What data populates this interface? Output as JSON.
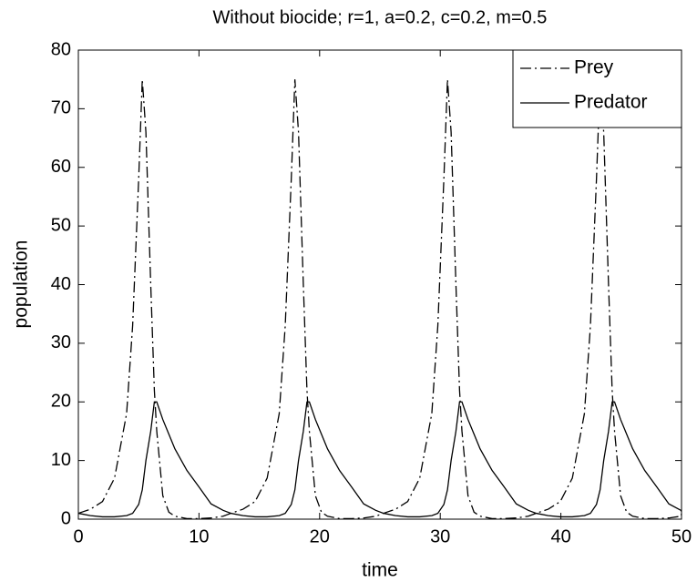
{
  "chart_data": {
    "type": "line",
    "title": "Without biocide; r=1, a=0.2, c=0.2, m=0.5",
    "xlabel": "time",
    "ylabel": "population",
    "x": [
      0,
      1,
      2,
      3,
      4,
      4.5,
      5,
      5.3,
      5.6,
      6,
      6.3,
      6.5,
      7,
      7.5,
      8,
      9,
      10,
      11,
      12,
      12.65,
      13.65,
      14.65,
      15.65,
      16.65,
      17.15,
      17.65,
      17.95,
      18.25,
      18.65,
      18.95,
      19.15,
      19.65,
      20.15,
      20.65,
      21.65,
      22.65,
      23.65,
      24.65,
      25.3,
      26.3,
      27.3,
      28.3,
      29.3,
      29.8,
      30.3,
      30.6,
      30.9,
      31.3,
      31.6,
      31.8,
      32.3,
      32.8,
      33.3,
      34.3,
      35.3,
      36.3,
      37.3,
      37.95,
      38.95,
      39.95,
      40.95,
      41.95,
      42.45,
      42.95,
      43.25,
      43.55,
      43.95,
      44.25,
      44.45,
      44.95,
      45.45,
      45.95,
      46.95,
      47.95,
      48.95,
      49.95,
      50
    ],
    "series": [
      {
        "name": "Prey",
        "color": "#000000",
        "dash": "dashdot",
        "values": [
          1,
          1.7,
          3,
          7,
          18,
          33,
          58,
          75,
          66,
          40,
          22,
          15,
          4,
          1.2,
          0.5,
          0.1,
          0.1,
          0.2,
          0.5,
          1,
          1.7,
          3,
          7,
          18,
          33,
          58,
          75,
          66,
          40,
          22,
          15,
          4,
          1.2,
          0.5,
          0.1,
          0.1,
          0.2,
          0.5,
          1,
          1.7,
          3,
          7,
          18,
          33,
          58,
          75,
          66,
          40,
          22,
          15,
          4,
          1.2,
          0.5,
          0.1,
          0.1,
          0.2,
          0.5,
          1,
          1.7,
          3,
          7,
          18,
          33,
          58,
          75,
          66,
          40,
          22,
          15,
          4,
          1.2,
          0.5,
          0.1,
          0.1,
          0.2,
          0.5,
          0.9
        ]
      },
      {
        "name": "Predator",
        "color": "#000000",
        "dash": "solid",
        "values": [
          1,
          0.6,
          0.4,
          0.4,
          0.6,
          1,
          2.5,
          5,
          10,
          15,
          20,
          20,
          17,
          14.5,
          12,
          8.3,
          5.5,
          2.6,
          1.5,
          1,
          0.6,
          0.4,
          0.4,
          0.6,
          1,
          2.5,
          5,
          10,
          15,
          20,
          20,
          17,
          14.5,
          12,
          8.3,
          5.5,
          2.6,
          1.5,
          1,
          0.6,
          0.4,
          0.4,
          0.6,
          1,
          2.5,
          5,
          10,
          15,
          20,
          20,
          17,
          14.5,
          12,
          8.3,
          5.5,
          2.6,
          1.5,
          1,
          0.6,
          0.4,
          0.4,
          0.6,
          1,
          2.5,
          5,
          10,
          15,
          20,
          20,
          17,
          14.5,
          12,
          8.3,
          5.5,
          2.6,
          1.5,
          1.3
        ]
      }
    ],
    "xlim": [
      0,
      50
    ],
    "xticks": [
      0,
      10,
      20,
      30,
      40,
      50
    ],
    "ylim": [
      0,
      80
    ],
    "yticks": [
      0,
      10,
      20,
      30,
      40,
      50,
      60,
      70,
      80
    ],
    "grid": false,
    "legend": "upper right"
  }
}
